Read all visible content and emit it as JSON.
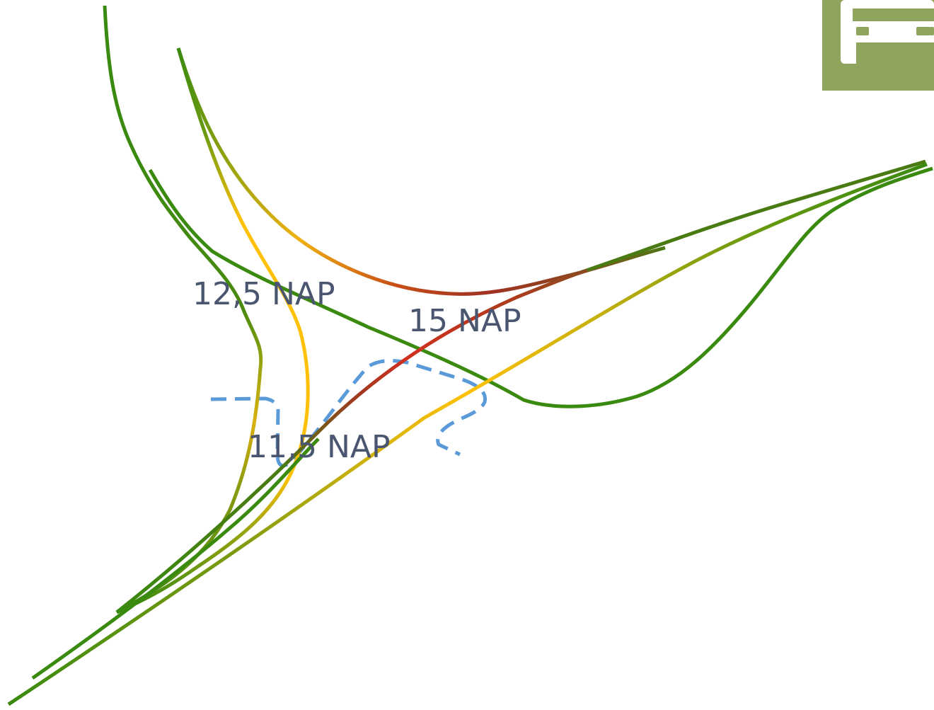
{
  "labels": {
    "elevation_left": "12,5 NAP",
    "elevation_center": "15 NAP",
    "elevation_bottom": "11,5 NAP"
  },
  "icon": {
    "name": "car-icon",
    "background_color": "#8fa45c"
  },
  "colors": {
    "road_green": "#3a8a0f",
    "road_olive": "#8a9a10",
    "road_yellow": "#ffc107",
    "road_orange": "#e8a010",
    "road_red": "#d03020",
    "road_brown": "#8a3a20",
    "water_dashed": "#5a9ad8",
    "label_text": "#4a5670"
  }
}
